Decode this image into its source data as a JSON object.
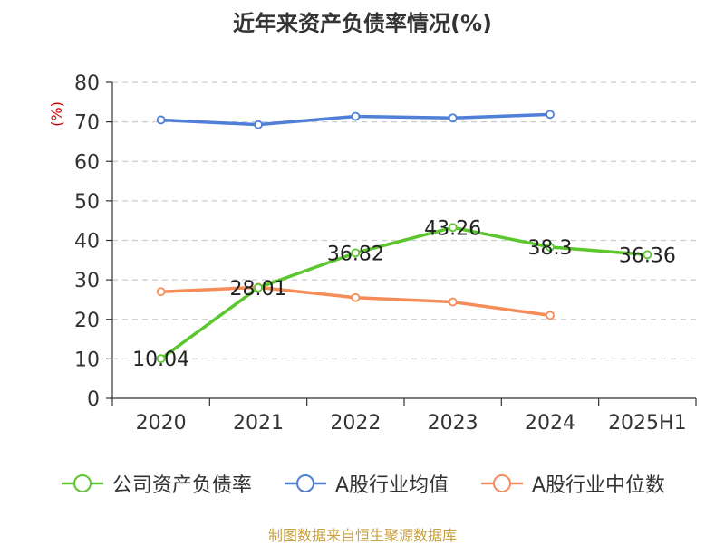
{
  "title": "近年来资产负债率情况(%)",
  "source": "制图数据来自恒生聚源数据库",
  "colors": {
    "company": "#5cc62e",
    "industry_avg": "#4f7fd8",
    "industry_median": "#f68c57",
    "grid": "#cccccc",
    "axis": "#333333",
    "unit_label": "#cc0000"
  },
  "chart_data": {
    "type": "line",
    "title": "近年来资产负债率情况(%)",
    "xlabel": "",
    "ylabel": "(%)",
    "categories": [
      "2020",
      "2021",
      "2022",
      "2023",
      "2024",
      "2025H1"
    ],
    "ylim": [
      0,
      80
    ],
    "yticks": [
      0,
      10,
      20,
      30,
      40,
      50,
      60,
      70,
      80
    ],
    "grid": true,
    "legend_position": "bottom",
    "series": [
      {
        "name": "公司资产负债率",
        "color_key": "company",
        "values": [
          10.04,
          28.01,
          36.82,
          43.26,
          38.3,
          36.36
        ],
        "labels": true
      },
      {
        "name": "A股行业均值",
        "color_key": "industry_avg",
        "values": [
          70.5,
          69.3,
          71.4,
          71.0,
          71.9,
          null
        ],
        "labels": false
      },
      {
        "name": "A股行业中位数",
        "color_key": "industry_median",
        "values": [
          27.0,
          28.1,
          25.5,
          24.4,
          21.0,
          null
        ],
        "labels": false
      }
    ]
  }
}
